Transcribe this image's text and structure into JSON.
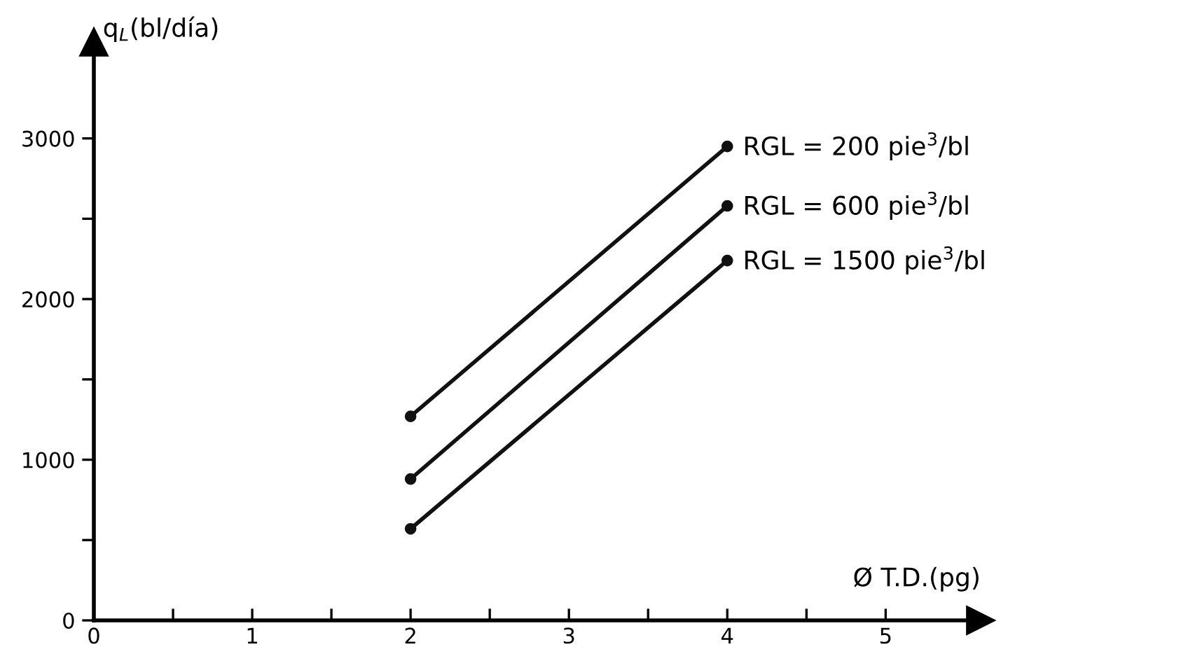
{
  "chart_data": {
    "type": "line",
    "x": [
      2,
      4
    ],
    "series": [
      {
        "name": "RGL = 200 pie$^{3}$/bl",
        "color": "#111111",
        "values": [
          1270,
          2950
        ]
      },
      {
        "name": "RGL = 600 pie$^{3}$/bl",
        "color": "#111111",
        "values": [
          880,
          2580
        ]
      },
      {
        "name": "RGL = 1500 pie$^{3}$/bl",
        "color": "#111111",
        "values": [
          570,
          2240
        ]
      }
    ],
    "xlabel": "Ø T.D.(pg)",
    "ylabel": "q$_{L}$(bl/día)",
    "xlim": [
      0,
      5.6
    ],
    "ylim": [
      0,
      3600
    ],
    "xticks": [
      0,
      {
        "value": 0.5,
        "label": null
      },
      1,
      {
        "value": 1.5,
        "label": null
      },
      2,
      {
        "value": 2.5,
        "label": null
      },
      3,
      {
        "value": 3.5,
        "label": null
      },
      4,
      {
        "value": 4.5,
        "label": null
      },
      5
    ],
    "yticks": [
      0,
      {
        "value": 500,
        "label": null
      },
      1000,
      {
        "value": 1500,
        "label": null
      },
      2000,
      {
        "value": 2500,
        "label": null
      },
      3000
    ],
    "marker": "circle",
    "line_style": "solid",
    "grid": false,
    "legend": false
  }
}
